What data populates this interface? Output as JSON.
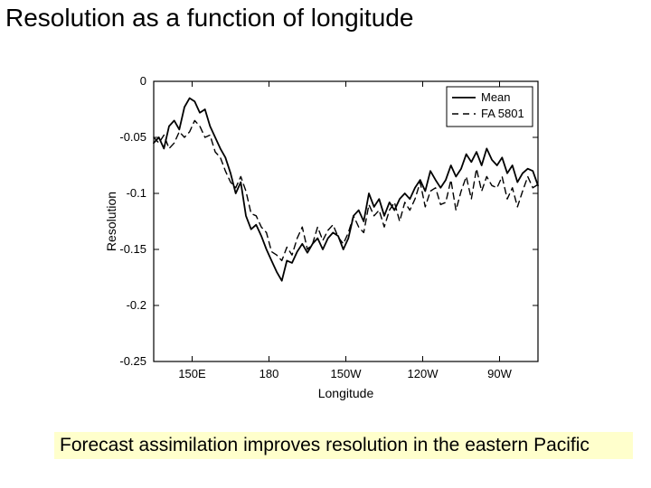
{
  "title": "Resolution as a function of longitude",
  "caption": "Forecast assimilation improves resolution in the eastern Pacific",
  "caption_bg": "#ffffcc",
  "chart": {
    "type": "line",
    "background_color": "#ffffff",
    "axis_color": "#000000",
    "line_color": "#000000",
    "xlabel": "Longitude",
    "ylabel": "Resolution",
    "label_fontsize": 14,
    "tick_fontsize": 13,
    "xlim_deg": [
      135,
      285
    ],
    "ylim": [
      -0.25,
      0
    ],
    "yticks": [
      0,
      -0.05,
      -0.1,
      -0.15,
      -0.2,
      -0.25
    ],
    "xticks_deg": [
      150,
      180,
      210,
      240,
      270
    ],
    "xtick_labels": [
      "150E",
      "180",
      "150W",
      "120W",
      "90W"
    ],
    "line_width_solid": 1.8,
    "line_width_dash": 1.4,
    "dash_pattern": "7,5",
    "legend": {
      "pos": "top-right",
      "border": "#000000",
      "items": [
        {
          "label": "Mean",
          "style": "solid"
        },
        {
          "label": "FA 5801",
          "style": "dash"
        }
      ]
    },
    "series": [
      {
        "name": "Mean",
        "style": "solid",
        "points": [
          [
            135,
            -0.055
          ],
          [
            137,
            -0.05
          ],
          [
            139,
            -0.06
          ],
          [
            141,
            -0.04
          ],
          [
            143,
            -0.035
          ],
          [
            145,
            -0.043
          ],
          [
            147,
            -0.023
          ],
          [
            149,
            -0.015
          ],
          [
            151,
            -0.018
          ],
          [
            153,
            -0.028
          ],
          [
            155,
            -0.025
          ],
          [
            157,
            -0.04
          ],
          [
            159,
            -0.05
          ],
          [
            161,
            -0.06
          ],
          [
            163,
            -0.068
          ],
          [
            165,
            -0.082
          ],
          [
            167,
            -0.1
          ],
          [
            169,
            -0.09
          ],
          [
            171,
            -0.12
          ],
          [
            173,
            -0.132
          ],
          [
            175,
            -0.128
          ],
          [
            177,
            -0.138
          ],
          [
            179,
            -0.15
          ],
          [
            181,
            -0.16
          ],
          [
            183,
            -0.17
          ],
          [
            185,
            -0.178
          ],
          [
            187,
            -0.16
          ],
          [
            189,
            -0.162
          ],
          [
            191,
            -0.152
          ],
          [
            193,
            -0.145
          ],
          [
            195,
            -0.153
          ],
          [
            197,
            -0.145
          ],
          [
            199,
            -0.14
          ],
          [
            201,
            -0.15
          ],
          [
            203,
            -0.14
          ],
          [
            205,
            -0.135
          ],
          [
            207,
            -0.138
          ],
          [
            209,
            -0.15
          ],
          [
            211,
            -0.14
          ],
          [
            213,
            -0.12
          ],
          [
            215,
            -0.115
          ],
          [
            217,
            -0.125
          ],
          [
            219,
            -0.1
          ],
          [
            221,
            -0.112
          ],
          [
            223,
            -0.105
          ],
          [
            225,
            -0.12
          ],
          [
            227,
            -0.108
          ],
          [
            229,
            -0.115
          ],
          [
            231,
            -0.105
          ],
          [
            233,
            -0.1
          ],
          [
            235,
            -0.105
          ],
          [
            237,
            -0.095
          ],
          [
            239,
            -0.088
          ],
          [
            241,
            -0.098
          ],
          [
            243,
            -0.08
          ],
          [
            245,
            -0.088
          ],
          [
            247,
            -0.095
          ],
          [
            249,
            -0.088
          ],
          [
            251,
            -0.075
          ],
          [
            253,
            -0.085
          ],
          [
            255,
            -0.078
          ],
          [
            257,
            -0.065
          ],
          [
            259,
            -0.072
          ],
          [
            261,
            -0.063
          ],
          [
            263,
            -0.075
          ],
          [
            265,
            -0.06
          ],
          [
            267,
            -0.07
          ],
          [
            269,
            -0.075
          ],
          [
            271,
            -0.068
          ],
          [
            273,
            -0.082
          ],
          [
            275,
            -0.075
          ],
          [
            277,
            -0.09
          ],
          [
            279,
            -0.082
          ],
          [
            281,
            -0.078
          ],
          [
            283,
            -0.08
          ],
          [
            285,
            -0.093
          ]
        ]
      },
      {
        "name": "FA 5801",
        "style": "dash",
        "points": [
          [
            135,
            -0.05
          ],
          [
            137,
            -0.055
          ],
          [
            139,
            -0.048
          ],
          [
            141,
            -0.06
          ],
          [
            143,
            -0.055
          ],
          [
            145,
            -0.045
          ],
          [
            147,
            -0.05
          ],
          [
            149,
            -0.045
          ],
          [
            151,
            -0.035
          ],
          [
            153,
            -0.04
          ],
          [
            155,
            -0.05
          ],
          [
            157,
            -0.048
          ],
          [
            159,
            -0.063
          ],
          [
            161,
            -0.068
          ],
          [
            163,
            -0.08
          ],
          [
            165,
            -0.09
          ],
          [
            167,
            -0.095
          ],
          [
            169,
            -0.085
          ],
          [
            171,
            -0.098
          ],
          [
            173,
            -0.118
          ],
          [
            175,
            -0.12
          ],
          [
            177,
            -0.13
          ],
          [
            179,
            -0.135
          ],
          [
            181,
            -0.152
          ],
          [
            183,
            -0.155
          ],
          [
            185,
            -0.16
          ],
          [
            187,
            -0.148
          ],
          [
            189,
            -0.155
          ],
          [
            191,
            -0.14
          ],
          [
            193,
            -0.13
          ],
          [
            195,
            -0.15
          ],
          [
            197,
            -0.145
          ],
          [
            199,
            -0.13
          ],
          [
            201,
            -0.142
          ],
          [
            203,
            -0.133
          ],
          [
            205,
            -0.128
          ],
          [
            207,
            -0.139
          ],
          [
            209,
            -0.145
          ],
          [
            211,
            -0.135
          ],
          [
            213,
            -0.12
          ],
          [
            215,
            -0.13
          ],
          [
            217,
            -0.135
          ],
          [
            219,
            -0.11
          ],
          [
            221,
            -0.12
          ],
          [
            223,
            -0.115
          ],
          [
            225,
            -0.13
          ],
          [
            227,
            -0.115
          ],
          [
            229,
            -0.108
          ],
          [
            231,
            -0.125
          ],
          [
            233,
            -0.108
          ],
          [
            235,
            -0.115
          ],
          [
            237,
            -0.105
          ],
          [
            239,
            -0.09
          ],
          [
            241,
            -0.112
          ],
          [
            243,
            -0.098
          ],
          [
            245,
            -0.095
          ],
          [
            247,
            -0.11
          ],
          [
            249,
            -0.108
          ],
          [
            251,
            -0.088
          ],
          [
            253,
            -0.115
          ],
          [
            255,
            -0.098
          ],
          [
            257,
            -0.085
          ],
          [
            259,
            -0.105
          ],
          [
            261,
            -0.078
          ],
          [
            263,
            -0.098
          ],
          [
            265,
            -0.085
          ],
          [
            267,
            -0.093
          ],
          [
            269,
            -0.095
          ],
          [
            271,
            -0.085
          ],
          [
            273,
            -0.105
          ],
          [
            275,
            -0.095
          ],
          [
            277,
            -0.112
          ],
          [
            279,
            -0.098
          ],
          [
            281,
            -0.085
          ],
          [
            283,
            -0.095
          ],
          [
            285,
            -0.092
          ]
        ]
      }
    ]
  }
}
